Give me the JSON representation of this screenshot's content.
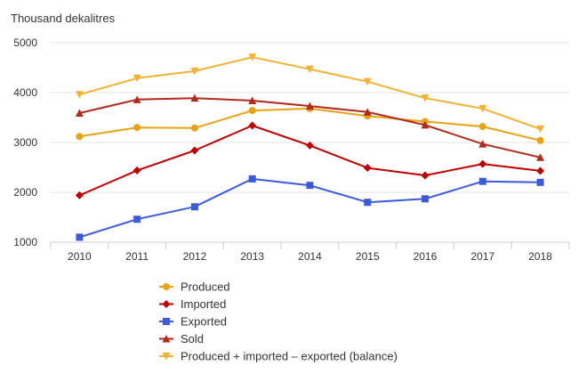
{
  "chart_data": {
    "type": "line",
    "ylabel": "Thousand dekalitres",
    "categories": [
      "2010",
      "2011",
      "2012",
      "2013",
      "2014",
      "2015",
      "2016",
      "2017",
      "2018"
    ],
    "ylim": [
      1000,
      5000
    ],
    "yticks": [
      1000,
      2000,
      3000,
      4000,
      5000
    ],
    "grid": true,
    "legend_position": "bottom",
    "series": [
      {
        "name": "Produced",
        "color": "#e8a317",
        "marker": "circle",
        "values": [
          3120,
          3300,
          3290,
          3640,
          3680,
          3530,
          3420,
          3320,
          3040
        ]
      },
      {
        "name": "Imported",
        "color": "#c00000",
        "marker": "diamond",
        "values": [
          1940,
          2440,
          2840,
          3340,
          2940,
          2490,
          2340,
          2570,
          2430
        ]
      },
      {
        "name": "Exported",
        "color": "#3b5bdb",
        "marker": "square",
        "values": [
          1100,
          1460,
          1710,
          2270,
          2140,
          1800,
          1870,
          2220,
          2200
        ]
      },
      {
        "name": "Sold",
        "color": "#b22a1a",
        "marker": "triangle-up",
        "values": [
          3590,
          3860,
          3890,
          3840,
          3730,
          3610,
          3350,
          2970,
          2700
        ]
      },
      {
        "name": "Produced + imported – exported (balance)",
        "color": "#f2b233",
        "marker": "triangle-down",
        "values": [
          3960,
          4290,
          4430,
          4710,
          4470,
          4220,
          3890,
          3680,
          3270
        ]
      }
    ]
  }
}
